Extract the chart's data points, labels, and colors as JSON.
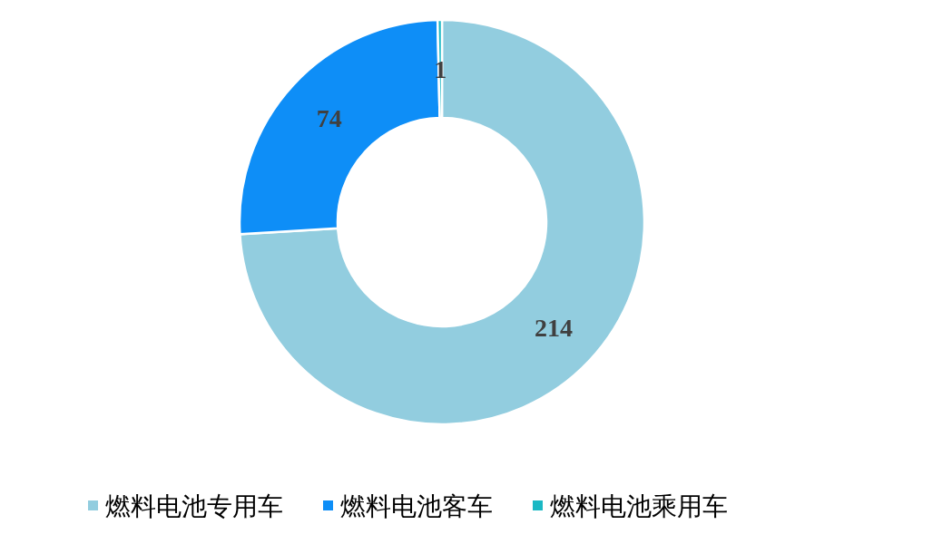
{
  "chart_data": {
    "type": "donut",
    "categories": [
      "燃料电池专用车",
      "燃料电池客车",
      "燃料电池乘用车"
    ],
    "values": [
      214,
      74,
      1
    ],
    "colors": [
      "#92cddf",
      "#0e8ef7",
      "#1ab8c4"
    ],
    "data_labels": true,
    "legend": "bottom"
  }
}
